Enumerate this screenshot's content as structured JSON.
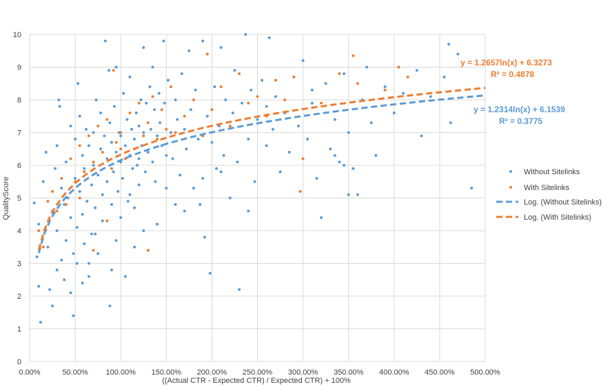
{
  "colors": {
    "without_sitelinks": "#5b9bd5",
    "with_sitelinks": "#ed7d31",
    "grid": "#d9d9d9",
    "text": "#404040"
  },
  "chart_data": {
    "type": "scatter",
    "title": "",
    "xlabel": "((Actual CTR - Expected CTR) / Expected CTR) + 100%",
    "ylabel": "QualityScore",
    "xlim": [
      0,
      5
    ],
    "ylim": [
      0,
      10
    ],
    "x_ticks": [
      0,
      0.5,
      1,
      1.5,
      2,
      2.5,
      3,
      3.5,
      4,
      4.5,
      5
    ],
    "x_tick_labels": [
      "0.00%",
      "50.00%",
      "100.00%",
      "150.00%",
      "200.00%",
      "250.00%",
      "300.00%",
      "350.00%",
      "400.00%",
      "450.00%",
      "500.00%"
    ],
    "y_ticks": [
      0,
      1,
      2,
      3,
      4,
      5,
      6,
      7,
      8,
      9,
      10
    ],
    "y_tick_labels": [
      "0",
      "1",
      "2",
      "3",
      "4",
      "5",
      "6",
      "7",
      "8",
      "9",
      "10"
    ],
    "grid": true,
    "legend_position": "right",
    "series": [
      {
        "name": "Without Sitelinks",
        "kind": "scatter",
        "color": "#5b9bd5",
        "points": [
          [
            0.05,
            4.85
          ],
          [
            0.08,
            3.2
          ],
          [
            0.1,
            2.3
          ],
          [
            0.1,
            4.2
          ],
          [
            0.12,
            1.2
          ],
          [
            0.15,
            5.5
          ],
          [
            0.18,
            6.4
          ],
          [
            0.2,
            3.5
          ],
          [
            0.22,
            2.2
          ],
          [
            0.25,
            4.6
          ],
          [
            0.25,
            1.7
          ],
          [
            0.28,
            5.9
          ],
          [
            0.3,
            2.8
          ],
          [
            0.3,
            4.0
          ],
          [
            0.3,
            6.6
          ],
          [
            0.32,
            8.0
          ],
          [
            0.33,
            7.8
          ],
          [
            0.35,
            3.1
          ],
          [
            0.35,
            5.3
          ],
          [
            0.38,
            2.5
          ],
          [
            0.38,
            4.8
          ],
          [
            0.4,
            6.1
          ],
          [
            0.4,
            3.7
          ],
          [
            0.42,
            5.0
          ],
          [
            0.45,
            2.1
          ],
          [
            0.45,
            4.4
          ],
          [
            0.45,
            7.2
          ],
          [
            0.48,
            3.3
          ],
          [
            0.48,
            1.4
          ],
          [
            0.5,
            5.6
          ],
          [
            0.5,
            6.8
          ],
          [
            0.52,
            4.1
          ],
          [
            0.52,
            3.0
          ],
          [
            0.53,
            8.5
          ],
          [
            0.55,
            5.2
          ],
          [
            0.55,
            7.5
          ],
          [
            0.58,
            4.5
          ],
          [
            0.58,
            6.3
          ],
          [
            0.6,
            3.6
          ],
          [
            0.6,
            5.9
          ],
          [
            0.62,
            7.1
          ],
          [
            0.63,
            4.9
          ],
          [
            0.65,
            2.6
          ],
          [
            0.65,
            6.6
          ],
          [
            0.68,
            5.4
          ],
          [
            0.68,
            3.9
          ],
          [
            0.7,
            7.0
          ],
          [
            0.7,
            6.0
          ],
          [
            0.72,
            4.7
          ],
          [
            0.73,
            8.0
          ],
          [
            0.75,
            5.7
          ],
          [
            0.75,
            3.3
          ],
          [
            0.78,
            6.5
          ],
          [
            0.78,
            7.6
          ],
          [
            0.8,
            5.1
          ],
          [
            0.8,
            4.3
          ],
          [
            0.82,
            6.9
          ],
          [
            0.83,
            9.8
          ],
          [
            0.85,
            6.2
          ],
          [
            0.85,
            5.5
          ],
          [
            0.87,
            8.9
          ],
          [
            0.88,
            7.3
          ],
          [
            0.88,
            1.7
          ],
          [
            0.9,
            6.7
          ],
          [
            0.9,
            4.8
          ],
          [
            0.92,
            5.8
          ],
          [
            0.93,
            7.8
          ],
          [
            0.95,
            6.4
          ],
          [
            0.95,
            9.0
          ],
          [
            0.97,
            5.2
          ],
          [
            0.98,
            7.0
          ],
          [
            1.0,
            6.1
          ],
          [
            1.0,
            6.9
          ],
          [
            1.02,
            5.6
          ],
          [
            1.03,
            8.2
          ],
          [
            1.05,
            6.6
          ],
          [
            1.05,
            2.6
          ],
          [
            1.07,
            7.4
          ],
          [
            1.08,
            4.9
          ],
          [
            1.1,
            6.3
          ],
          [
            1.1,
            8.7
          ],
          [
            1.12,
            7.1
          ],
          [
            1.13,
            5.9
          ],
          [
            1.15,
            6.8
          ],
          [
            1.15,
            3.5
          ],
          [
            1.17,
            7.6
          ],
          [
            1.18,
            6.0
          ],
          [
            1.2,
            7.2
          ],
          [
            1.2,
            5.4
          ],
          [
            1.22,
            8.0
          ],
          [
            1.23,
            6.6
          ],
          [
            1.25,
            9.6
          ],
          [
            1.25,
            7.0
          ],
          [
            1.27,
            5.8
          ],
          [
            1.28,
            7.9
          ],
          [
            1.3,
            6.4
          ],
          [
            1.32,
            8.4
          ],
          [
            1.33,
            7.1
          ],
          [
            1.35,
            6.1
          ],
          [
            1.35,
            9.0
          ],
          [
            1.37,
            7.7
          ],
          [
            1.38,
            5.5
          ],
          [
            1.4,
            6.9
          ],
          [
            1.42,
            8.2
          ],
          [
            1.43,
            7.3
          ],
          [
            1.45,
            6.6
          ],
          [
            1.47,
            9.8
          ],
          [
            1.48,
            7.9
          ],
          [
            1.5,
            6.3
          ],
          [
            1.52,
            8.6
          ],
          [
            1.55,
            7.0
          ],
          [
            1.57,
            6.2
          ],
          [
            1.6,
            8.0
          ],
          [
            1.62,
            7.4
          ],
          [
            1.65,
            5.7
          ],
          [
            1.67,
            8.8
          ],
          [
            1.7,
            7.1
          ],
          [
            1.72,
            6.5
          ],
          [
            1.75,
            9.5
          ],
          [
            1.77,
            7.7
          ],
          [
            1.8,
            5.3
          ],
          [
            1.82,
            8.3
          ],
          [
            1.85,
            6.8
          ],
          [
            1.87,
            4.8
          ],
          [
            1.9,
            9.8
          ],
          [
            1.92,
            3.8
          ],
          [
            1.95,
            7.5
          ],
          [
            1.98,
            2.7
          ],
          [
            2.0,
            6.7
          ],
          [
            2.03,
            8.4
          ],
          [
            2.05,
            5.9
          ],
          [
            2.08,
            7.2
          ],
          [
            2.1,
            9.6
          ],
          [
            2.13,
            6.3
          ],
          [
            2.15,
            8.0
          ],
          [
            2.2,
            5.0
          ],
          [
            2.23,
            7.6
          ],
          [
            2.25,
            8.9
          ],
          [
            2.28,
            6.1
          ],
          [
            2.3,
            2.2
          ],
          [
            2.33,
            7.9
          ],
          [
            2.37,
            10.0
          ],
          [
            2.4,
            6.8
          ],
          [
            2.43,
            8.3
          ],
          [
            2.47,
            5.5
          ],
          [
            2.5,
            7.4
          ],
          [
            2.55,
            8.6
          ],
          [
            2.6,
            6.6
          ],
          [
            2.63,
            9.9
          ],
          [
            2.67,
            7.1
          ],
          [
            2.7,
            8.1
          ],
          [
            2.75,
            5.8
          ],
          [
            2.8,
            7.6
          ],
          [
            2.85,
            6.4
          ],
          [
            2.9,
            8.7
          ],
          [
            2.95,
            7.2
          ],
          [
            3.0,
            9.2
          ],
          [
            3.05,
            6.8
          ],
          [
            3.1,
            7.9
          ],
          [
            3.15,
            5.6
          ],
          [
            3.2,
            4.4
          ],
          [
            3.25,
            8.5
          ],
          [
            3.3,
            6.5
          ],
          [
            3.35,
            7.4
          ],
          [
            3.4,
            6.1
          ],
          [
            3.45,
            8.8
          ],
          [
            3.5,
            7.0
          ],
          [
            3.55,
            5.9
          ],
          [
            3.6,
            5.1
          ],
          [
            3.65,
            8.0
          ],
          [
            3.7,
            9.0
          ],
          [
            3.75,
            7.3
          ],
          [
            3.8,
            6.3
          ],
          [
            3.9,
            8.4
          ],
          [
            4.0,
            7.6
          ],
          [
            4.05,
            9.0
          ],
          [
            4.1,
            8.2
          ],
          [
            4.25,
            8.9
          ],
          [
            4.3,
            6.9
          ],
          [
            4.55,
            8.7
          ],
          [
            4.6,
            9.7
          ],
          [
            4.62,
            7.3
          ],
          [
            4.7,
            9.4
          ],
          [
            4.85,
            5.3
          ],
          [
            1.1,
            5.1
          ],
          [
            1.2,
            6.2
          ],
          [
            0.65,
            3.0
          ],
          [
            0.72,
            3.9
          ],
          [
            0.58,
            2.4
          ],
          [
            1.5,
            5.3
          ],
          [
            1.7,
            4.6
          ],
          [
            1.9,
            5.6
          ],
          [
            2.1,
            5.8
          ],
          [
            0.9,
            2.8
          ],
          [
            1.0,
            4.4
          ],
          [
            1.4,
            4.2
          ],
          [
            1.6,
            4.8
          ],
          [
            1.25,
            4.0
          ],
          [
            0.95,
            3.7
          ],
          [
            1.15,
            4.7
          ],
          [
            2.4,
            4.6
          ],
          [
            2.6,
            7.8
          ],
          [
            3.1,
            8.3
          ],
          [
            3.35,
            6.3
          ],
          [
            3.45,
            6.0
          ],
          [
            3.5,
            5.1
          ],
          [
            4.4,
            8.1
          ]
        ]
      },
      {
        "name": "With Sitelinks",
        "kind": "scatter",
        "color": "#ed7d31",
        "points": [
          [
            0.1,
            4.0
          ],
          [
            0.15,
            3.5
          ],
          [
            0.2,
            4.9
          ],
          [
            0.25,
            5.2
          ],
          [
            0.3,
            4.6
          ],
          [
            0.35,
            5.6
          ],
          [
            0.4,
            4.8
          ],
          [
            0.45,
            6.2
          ],
          [
            0.5,
            5.5
          ],
          [
            0.55,
            6.6
          ],
          [
            0.6,
            5.8
          ],
          [
            0.65,
            6.9
          ],
          [
            0.7,
            6.1
          ],
          [
            0.75,
            7.2
          ],
          [
            0.8,
            6.4
          ],
          [
            0.85,
            7.4
          ],
          [
            0.9,
            5.9
          ],
          [
            0.92,
            8.9
          ],
          [
            0.95,
            6.7
          ],
          [
            1.0,
            7.0
          ],
          [
            1.05,
            6.2
          ],
          [
            1.1,
            7.6
          ],
          [
            1.15,
            6.5
          ],
          [
            1.2,
            7.9
          ],
          [
            1.25,
            6.9
          ],
          [
            1.3,
            7.3
          ],
          [
            1.35,
            8.1
          ],
          [
            1.4,
            6.8
          ],
          [
            1.45,
            7.7
          ],
          [
            1.5,
            7.1
          ],
          [
            1.55,
            8.4
          ],
          [
            1.6,
            7.0
          ],
          [
            1.7,
            7.5
          ],
          [
            1.8,
            8.0
          ],
          [
            1.9,
            6.9
          ],
          [
            1.95,
            9.4
          ],
          [
            2.0,
            7.7
          ],
          [
            2.1,
            8.4
          ],
          [
            2.2,
            7.2
          ],
          [
            2.3,
            8.8
          ],
          [
            2.4,
            7.9
          ],
          [
            2.5,
            8.1
          ],
          [
            2.6,
            7.5
          ],
          [
            2.7,
            8.6
          ],
          [
            2.8,
            8.0
          ],
          [
            2.9,
            8.7
          ],
          [
            2.97,
            5.2
          ],
          [
            3.0,
            6.2
          ],
          [
            3.2,
            7.9
          ],
          [
            3.4,
            8.8
          ],
          [
            3.55,
            9.35
          ],
          [
            3.6,
            8.5
          ],
          [
            3.9,
            8.3
          ],
          [
            4.05,
            9.0
          ],
          [
            4.15,
            8.7
          ],
          [
            0.7,
            3.4
          ],
          [
            0.55,
            5.0
          ],
          [
            1.0,
            6.5
          ],
          [
            1.3,
            3.4
          ],
          [
            0.85,
            4.3
          ]
        ]
      }
    ],
    "trendlines": [
      {
        "name": "Log. (Without Sitelinks)",
        "series": "Without Sitelinks",
        "type": "logarithmic",
        "a": 1.2314,
        "b": 6.1539,
        "x_range": [
          0.1,
          5
        ],
        "color": "#5b9bd5",
        "equation": "y = 1.2314ln(x) + 6.1539",
        "r2_label": "R² = 0.3775"
      },
      {
        "name": "Log. (With Sitelinks)",
        "series": "With Sitelinks",
        "type": "logarithmic",
        "a": 1.2657,
        "b": 6.3273,
        "x_range": [
          0.1,
          5
        ],
        "color": "#ed7d31",
        "equation": "y = 1.2657ln(x) + 6.3273",
        "r2_label": "R² = 0.4878"
      }
    ]
  }
}
